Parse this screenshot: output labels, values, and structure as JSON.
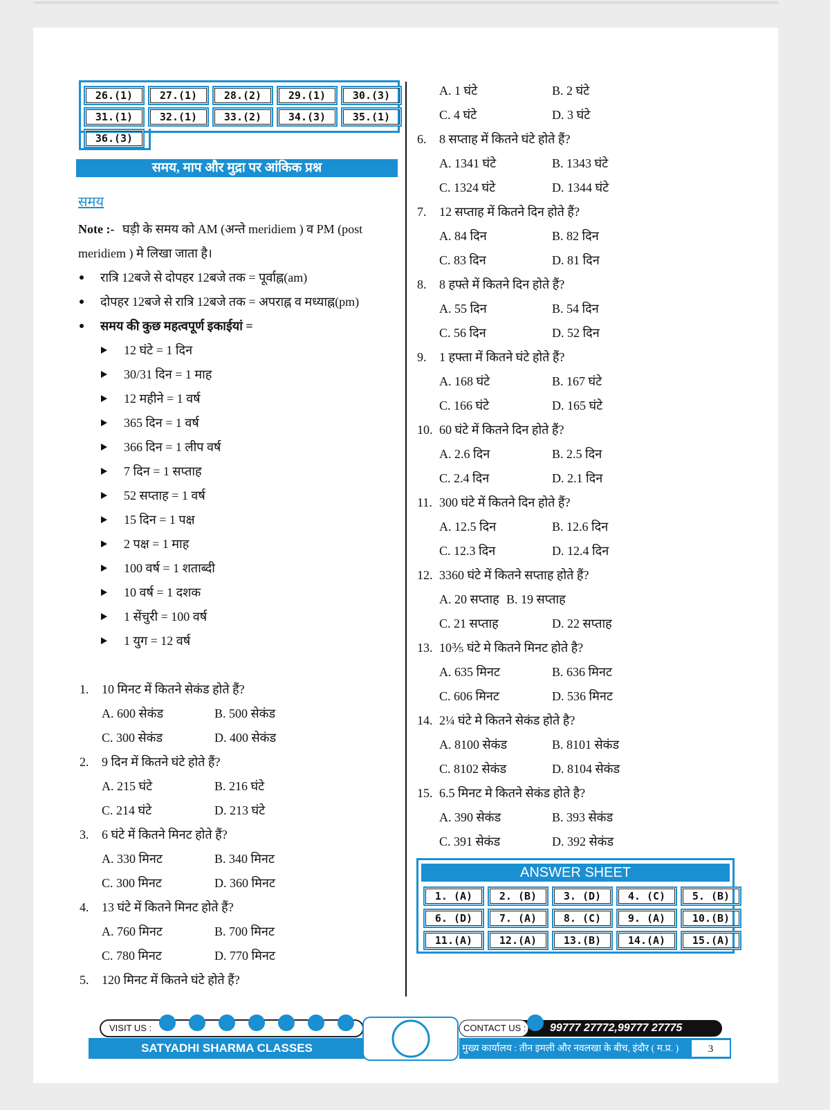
{
  "prev_answers": [
    "26.(1)",
    "27.(1)",
    "28.(2)",
    "29.(1)",
    "30.(3)",
    "31.(1)",
    "32.(1)",
    "33.(2)",
    "34.(3)",
    "35.(1)",
    "36.(3)"
  ],
  "section_title": "समय, माप और मुद्रा पर आंकिक प्रश्न",
  "heading": "समय",
  "note": {
    "label": "Note :-",
    "line1": "घड़ी के समय को AM (अन्ते meridiem ) व PM (post",
    "line2": "meridiem ) मे लिखा जाता है।"
  },
  "bullets": [
    "रात्रि 12बजे से दोपहर 12बजे तक = पूर्वाह्न(am)",
    "दोपहर 12बजे से रात्रि 12बजे तक = अपराह्न व मध्याह्न(pm)",
    "समय की कुछ महत्वपूर्ण इकाईयां ="
  ],
  "units": [
    "12 घंटे = 1 दिन",
    "30/31 दिन = 1 माह",
    "12 महीने = 1 वर्ष",
    "365 दिन = 1 वर्ष",
    "366 दिन = 1 लीप वर्ष",
    "7 दिन = 1 सप्ताह",
    "52 सप्ताह = 1 वर्ष",
    "15 दिन = 1 पक्ष",
    "2 पक्ष = 1 माह",
    "100 वर्ष = 1 शताब्दी",
    "10 वर्ष = 1 दशक",
    "1 सेंचुरी = 100 वर्ष",
    "1 युग = 12 वर्ष"
  ],
  "questions": [
    {
      "number": "1.",
      "text": "10 मिनट में कितने सेकंड होते हैं?",
      "options": [
        "A. 600 सेकंड",
        "B. 500 सेकंड",
        "C. 300 सेकंड",
        "D. 400 सेकंड"
      ]
    },
    {
      "number": "2.",
      "text": "9 दिन में कितने घंटे होते हैं?",
      "options": [
        "A. 215 घंटे",
        "B. 216 घंटे",
        "C. 214 घंटे",
        "D. 213 घंटे"
      ]
    },
    {
      "number": "3.",
      "text": "6 घंटे में कितने मिनट होते हैं?",
      "options": [
        "A. 330 मिनट",
        "B. 340 मिनट",
        "C. 300 मिनट",
        "D. 360 मिनट"
      ]
    },
    {
      "number": "4.",
      "text": "13 घंटे में कितने मिनट होते हैं?",
      "options": [
        "A. 760 मिनट",
        "B. 700 मिनट",
        "C. 780 मिनट",
        "D. 770 मिनट"
      ]
    },
    {
      "number": "5.",
      "text": "120 मिनट में कितने घंटे होते हैं?",
      "options": [
        "A. 1 घंटे",
        "B. 2 घंटे",
        "C. 4 घंटे",
        "D. 3 घंटे"
      ]
    },
    {
      "number": "6.",
      "text": "8 सप्ताह में कितने घंटे होते हैं?",
      "options": [
        "A. 1341 घंटे",
        "B. 1343 घंटे",
        "C. 1324 घंटे",
        "D. 1344 घंटे"
      ]
    },
    {
      "number": "7.",
      "text": "12 सप्ताह में कितने दिन होते हैं?",
      "options": [
        "A. 84 दिन",
        "B. 82 दिन",
        "C. 83 दिन",
        "D. 81 दिन"
      ]
    },
    {
      "number": "8.",
      "text": "8 हफ्ते में कितने दिन होते हैं?",
      "options": [
        "A. 55 दिन",
        "B. 54 दिन",
        "C. 56 दिन",
        "D. 52 दिन"
      ]
    },
    {
      "number": "9.",
      "text": "1 हफ्ता में कितने घंटे होते हैं?",
      "options": [
        "A. 168 घंटे",
        "B. 167 घंटे",
        "C. 166 घंटे",
        "D. 165 घंटे"
      ]
    },
    {
      "number": "10.",
      "text": "60 घंटे में कितने दिन होते हैं?",
      "options": [
        "A. 2.6 दिन",
        "B. 2.5 दिन",
        "C. 2.4 दिन",
        "D. 2.1 दिन"
      ]
    },
    {
      "number": "11.",
      "text": "300 घंटे में कितने दिन होते हैं?",
      "options": [
        "A. 12.5 दिन",
        "B. 12.6 दिन",
        "C. 12.3 दिन",
        "D. 12.4 दिन"
      ]
    },
    {
      "number": "12.",
      "text": "3360 घंटे में कितने सप्ताह होते हैं?",
      "options": [
        "A. 20 सप्ताह",
        "B. 19 सप्ताह",
        "C. 21 सप्ताह",
        "D. 22 सप्ताह"
      ]
    },
    {
      "number": "13.",
      "text": "10⅗ घंटे मे कितने मिनट होते है?",
      "options": [
        "A. 635 मिनट",
        "B. 636 मिनट",
        "C. 606 मिनट",
        "D. 536 मिनट"
      ]
    },
    {
      "number": "14.",
      "text": "2¼ घंटे मे कितने सेकंड होते है?",
      "options": [
        "A. 8100 सेकंड",
        "B. 8101 सेकंड",
        "C. 8102 सेकंड",
        "D. 8104 सेकंड"
      ]
    },
    {
      "number": "15.",
      "text": "6.5 मिनट मे कितने सेकंड होते है?",
      "options": [
        "A. 390 सेकंड",
        "B. 393 सेकंड",
        "C. 391 सेकंड",
        "D. 392 सेकंड"
      ]
    }
  ],
  "answer_sheet": {
    "title": "ANSWER SHEET",
    "answers": [
      "1. (A)",
      "2. (B)",
      "3. (D)",
      "4. (C)",
      "5. (B)",
      "6. (D)",
      "7. (A)",
      "8. (C)",
      "9. (A)",
      "10.(B)",
      "11.(A)",
      "12.(A)",
      "13.(B)",
      "14.(A)",
      "15.(A)"
    ]
  },
  "footer": {
    "visit_label": "VISIT US :",
    "brand": "SATYADHI SHARMA CLASSES",
    "contact_label": "CONTACT US :",
    "phones": "99777 27772,99777 27775",
    "address": "मुख्य कार्यालय : तीन इमली और नवलखा के बीच, इंदौर ( म.प्र. )",
    "page": "3"
  }
}
